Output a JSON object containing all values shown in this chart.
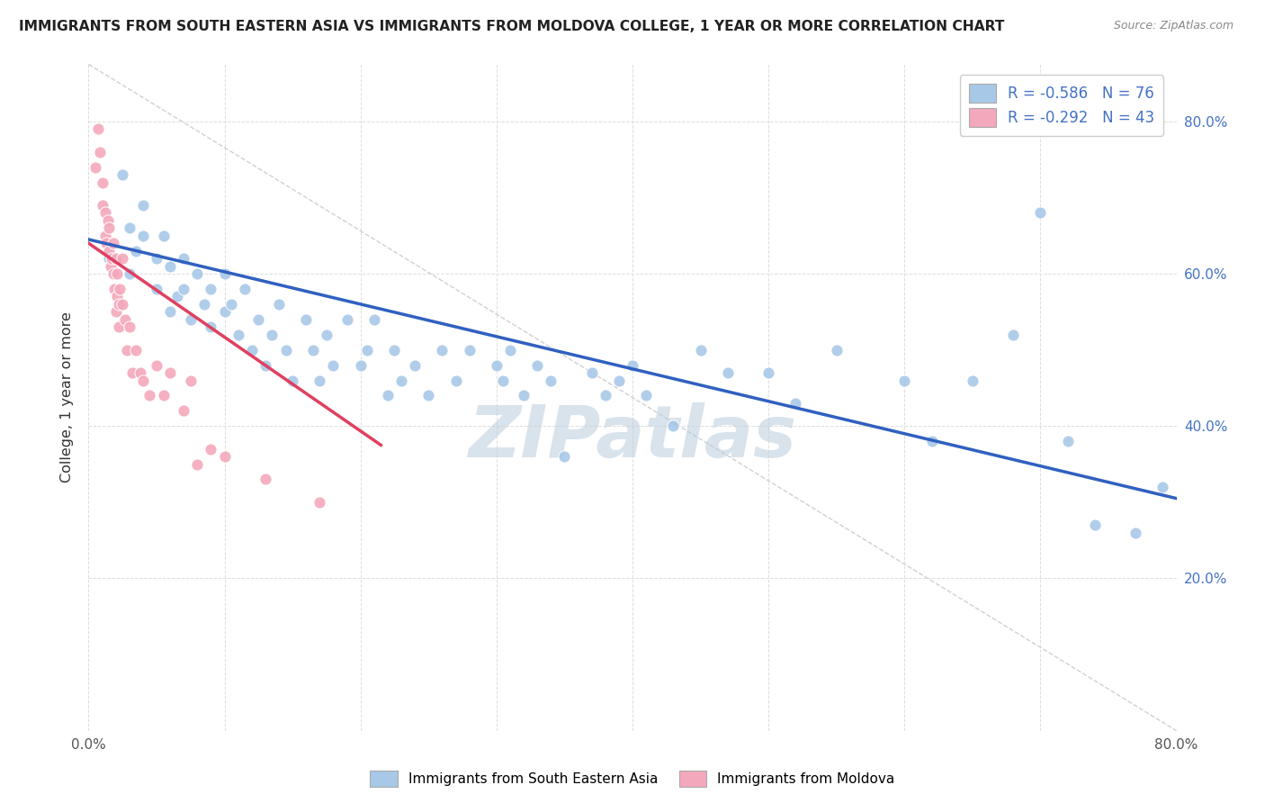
{
  "title": "IMMIGRANTS FROM SOUTH EASTERN ASIA VS IMMIGRANTS FROM MOLDOVA COLLEGE, 1 YEAR OR MORE CORRELATION CHART",
  "source": "Source: ZipAtlas.com",
  "ylabel": "College, 1 year or more",
  "xlim": [
    0.0,
    0.8
  ],
  "ylim": [
    0.0,
    0.875
  ],
  "xtick_positions": [
    0.0,
    0.1,
    0.2,
    0.3,
    0.4,
    0.5,
    0.6,
    0.7,
    0.8
  ],
  "xticklabels": [
    "0.0%",
    "",
    "",
    "",
    "",
    "",
    "",
    "",
    "80.0%"
  ],
  "ytick_positions": [
    0.2,
    0.4,
    0.6,
    0.8
  ],
  "ytick_labels": [
    "20.0%",
    "40.0%",
    "60.0%",
    "80.0%"
  ],
  "legend_line1": "R = -0.586   N = 76",
  "legend_line2": "R = -0.292   N = 43",
  "series1_color": "#a8c8e8",
  "series2_color": "#f4a8bc",
  "line1_color": "#3060c0",
  "line2_color": "#e04060",
  "line_dashed_color": "#d0d0d0",
  "watermark": "ZIPatlas",
  "blue_line_x": [
    0.0,
    0.8
  ],
  "blue_line_y": [
    0.645,
    0.305
  ],
  "pink_line_x": [
    0.0,
    0.215
  ],
  "pink_line_y": [
    0.64,
    0.375
  ],
  "dashed_line_x": [
    0.0,
    0.8
  ],
  "dashed_line_y": [
    0.875,
    0.0
  ],
  "blue_x": [
    0.015,
    0.025,
    0.03,
    0.03,
    0.035,
    0.04,
    0.04,
    0.05,
    0.05,
    0.055,
    0.06,
    0.06,
    0.065,
    0.07,
    0.07,
    0.075,
    0.08,
    0.085,
    0.09,
    0.09,
    0.1,
    0.1,
    0.105,
    0.11,
    0.115,
    0.12,
    0.125,
    0.13,
    0.135,
    0.14,
    0.145,
    0.15,
    0.16,
    0.165,
    0.17,
    0.175,
    0.18,
    0.19,
    0.2,
    0.205,
    0.21,
    0.22,
    0.225,
    0.23,
    0.24,
    0.25,
    0.26,
    0.27,
    0.28,
    0.3,
    0.305,
    0.31,
    0.32,
    0.33,
    0.34,
    0.35,
    0.37,
    0.38,
    0.39,
    0.4,
    0.41,
    0.43,
    0.45,
    0.47,
    0.5,
    0.52,
    0.55,
    0.6,
    0.62,
    0.65,
    0.68,
    0.7,
    0.72,
    0.74,
    0.77,
    0.79
  ],
  "blue_y": [
    0.62,
    0.73,
    0.66,
    0.6,
    0.63,
    0.69,
    0.65,
    0.62,
    0.58,
    0.65,
    0.61,
    0.55,
    0.57,
    0.62,
    0.58,
    0.54,
    0.6,
    0.56,
    0.58,
    0.53,
    0.55,
    0.6,
    0.56,
    0.52,
    0.58,
    0.5,
    0.54,
    0.48,
    0.52,
    0.56,
    0.5,
    0.46,
    0.54,
    0.5,
    0.46,
    0.52,
    0.48,
    0.54,
    0.48,
    0.5,
    0.54,
    0.44,
    0.5,
    0.46,
    0.48,
    0.44,
    0.5,
    0.46,
    0.5,
    0.48,
    0.46,
    0.5,
    0.44,
    0.48,
    0.46,
    0.36,
    0.47,
    0.44,
    0.46,
    0.48,
    0.44,
    0.4,
    0.5,
    0.47,
    0.47,
    0.43,
    0.5,
    0.46,
    0.38,
    0.46,
    0.52,
    0.68,
    0.38,
    0.27,
    0.26,
    0.32
  ],
  "pink_x": [
    0.005,
    0.007,
    0.008,
    0.01,
    0.01,
    0.012,
    0.012,
    0.013,
    0.014,
    0.015,
    0.015,
    0.016,
    0.017,
    0.018,
    0.018,
    0.019,
    0.02,
    0.02,
    0.021,
    0.021,
    0.022,
    0.022,
    0.023,
    0.025,
    0.025,
    0.027,
    0.028,
    0.03,
    0.032,
    0.035,
    0.038,
    0.04,
    0.045,
    0.05,
    0.055,
    0.06,
    0.07,
    0.075,
    0.08,
    0.09,
    0.1,
    0.13,
    0.17
  ],
  "pink_y": [
    0.74,
    0.79,
    0.76,
    0.72,
    0.69,
    0.68,
    0.65,
    0.64,
    0.67,
    0.66,
    0.63,
    0.61,
    0.62,
    0.6,
    0.64,
    0.58,
    0.62,
    0.55,
    0.6,
    0.57,
    0.56,
    0.53,
    0.58,
    0.56,
    0.62,
    0.54,
    0.5,
    0.53,
    0.47,
    0.5,
    0.47,
    0.46,
    0.44,
    0.48,
    0.44,
    0.47,
    0.42,
    0.46,
    0.35,
    0.37,
    0.36,
    0.33,
    0.3
  ]
}
